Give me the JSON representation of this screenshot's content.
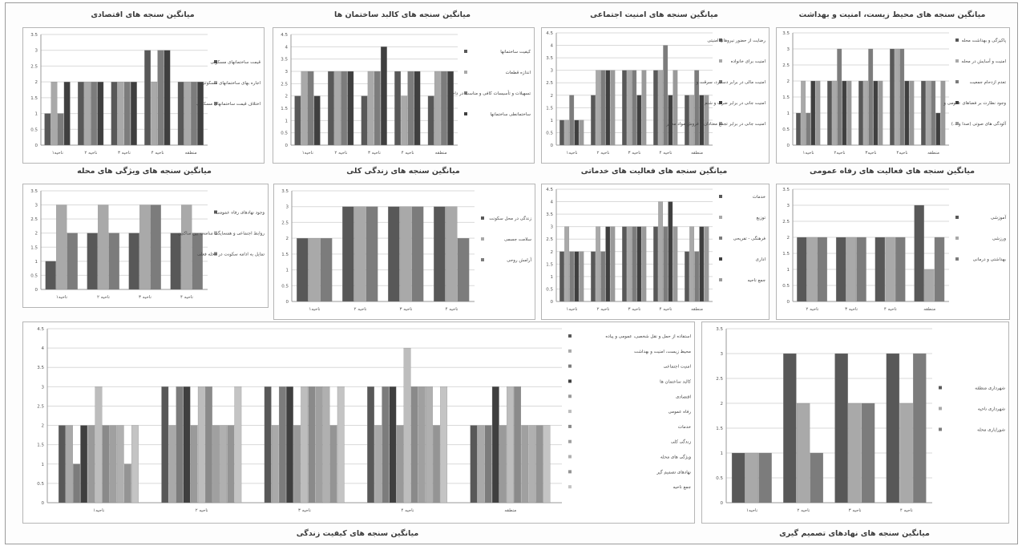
{
  "chart_data": [
    {
      "type": "bar",
      "title": "میانگین سنجه های اقتصادی",
      "categories": [
        "ناحیه۱",
        "ناحیه ۲",
        "ناحیه ۳",
        "ناحیه ۴",
        "منطقه"
      ],
      "ylim": [
        0,
        3.5
      ],
      "grid": true,
      "legend": "right",
      "series": [
        {
          "name": "قیمت ساختمانهای مسکونی",
          "values": [
            1,
            2,
            2,
            3,
            2
          ]
        },
        {
          "name": "اجاره بهای ساختمانهای مسکونی",
          "values": [
            2,
            2,
            2,
            2,
            2
          ]
        },
        {
          "name": "اختلاف قیمت ساختمانهای مسکونی",
          "values": [
            1,
            2,
            2,
            3,
            2
          ]
        },
        {
          "name": "",
          "values": [
            2,
            2,
            2,
            3,
            2
          ]
        }
      ]
    },
    {
      "type": "bar",
      "title": "میانگین سنجه های کالبد ساختمان ها",
      "categories": [
        "ناحیه۱",
        "ناحیه ۲",
        "ناحیه ۳",
        "ناحیه ۴",
        "منطقه"
      ],
      "ylim": [
        0,
        4.5
      ],
      "grid": true,
      "legend": "right",
      "series": [
        {
          "name": "کیفیت ساختمانها",
          "values": [
            2,
            3,
            2,
            3,
            2
          ]
        },
        {
          "name": "اندازه قطعات",
          "values": [
            3,
            3,
            3,
            2,
            3
          ]
        },
        {
          "name": "تسهیلات و تأسیسات کافی و مناسب در داخل",
          "values": [
            3,
            3,
            3,
            3,
            3
          ]
        },
        {
          "name": "ساختمانطی ساختمانها",
          "values": [
            2,
            3,
            4,
            3,
            3
          ]
        }
      ]
    },
    {
      "type": "bar",
      "title": "میانگین سنجه های امنیت اجتماعی",
      "categories": [
        "ناحیه۱",
        "ناحیه ۲",
        "ناحیه ۳",
        "ناحیه ۴",
        "منطقه"
      ],
      "ylim": [
        0,
        4.5
      ],
      "grid": true,
      "legend": "right",
      "series": [
        {
          "name": "رضایت از حضور نیروهای امنیتی",
          "values": [
            1,
            2,
            3,
            3,
            2
          ]
        },
        {
          "name": "امنیت برای خانواده",
          "values": [
            1,
            3,
            3,
            3,
            2
          ]
        },
        {
          "name": "امنیت مالی در برابر دستبرد، سرقت و",
          "values": [
            2,
            3,
            3,
            4,
            3
          ]
        },
        {
          "name": "امنیت جانی در برابر ضرب و شتم و",
          "values": [
            1,
            3,
            2,
            2,
            2
          ]
        },
        {
          "name": "امنیت جانی در برابر تجمع معتادان و فروش مواد مخدر",
          "values": [
            1,
            3,
            3,
            3,
            2
          ]
        }
      ]
    },
    {
      "type": "bar",
      "title": "میانگین سنجه های محیط زیست، امنیت و بهداشت",
      "categories": [
        "ناحیه۱",
        "ناحیه۲",
        "ناحیه۳",
        "ناحیه۴",
        "منطقه"
      ],
      "ylim": [
        0,
        3.5
      ],
      "grid": true,
      "legend": "right",
      "series": [
        {
          "name": "پاکیزگی و بهداشت محله",
          "values": [
            1,
            2,
            2,
            3,
            2
          ]
        },
        {
          "name": "امنیت و آسایش در محله",
          "values": [
            2,
            2,
            2,
            3,
            2
          ]
        },
        {
          "name": "تعدم ازدحام جمعیت",
          "values": [
            1,
            3,
            3,
            3,
            2
          ]
        },
        {
          "name": "وجود نظارت بر فضاهای عمومی و",
          "values": [
            2,
            2,
            2,
            2,
            1
          ]
        },
        {
          "name": "آلودگی های صوتی (صدا و ...)",
          "values": [
            2,
            2,
            2,
            2,
            2
          ]
        }
      ]
    },
    {
      "type": "bar",
      "title": "میانگین سنجه های ویژگی های محله",
      "categories": [
        "ناحیه۱",
        "ناحیه ۲",
        "ناحیه ۳",
        "ناحیه ۴"
      ],
      "ylim": [
        0,
        3.5
      ],
      "grid": true,
      "legend": "right",
      "series": [
        {
          "name": "وجود نهادهای رفاه عمومی",
          "values": [
            1,
            2,
            2,
            2
          ]
        },
        {
          "name": "روابط اجتماعی و همسایگی مناسب بین ساکنین",
          "values": [
            3,
            3,
            3,
            3
          ]
        },
        {
          "name": "تمایل به ادامه سکونت در محله فعلی",
          "values": [
            2,
            2,
            3,
            2
          ]
        }
      ]
    },
    {
      "type": "bar",
      "title": "میانگین سنجه های زندگی کلی",
      "categories": [
        "ناحیه۱",
        "ناحیه ۲",
        "ناحیه ۳",
        "ناحیه ۴"
      ],
      "ylim": [
        0,
        3.5
      ],
      "grid": true,
      "legend": "right",
      "series": [
        {
          "name": "زندگی در محل سکونت",
          "values": [
            2,
            3,
            3,
            3
          ]
        },
        {
          "name": "سلامت جسمی",
          "values": [
            2,
            3,
            3,
            3
          ]
        },
        {
          "name": "آرامش روحی",
          "values": [
            2,
            3,
            3,
            2
          ]
        }
      ]
    },
    {
      "type": "bar",
      "title": "میانگین سنجه های فعالیت های خدماتی",
      "categories": [
        "ناحیه۱",
        "ناحیه ۲",
        "ناحیه ۳",
        "ناحیه ۴",
        "منطقه"
      ],
      "ylim": [
        0,
        4.5
      ],
      "grid": true,
      "legend": "right",
      "series": [
        {
          "name": "خدمات",
          "values": [
            2,
            2,
            3,
            3,
            2
          ]
        },
        {
          "name": "توزیع",
          "values": [
            3,
            3,
            3,
            4,
            3
          ]
        },
        {
          "name": "فرهنگی - تفریحی",
          "values": [
            2,
            2,
            3,
            3,
            2
          ]
        },
        {
          "name": "اداری",
          "values": [
            2,
            3,
            3,
            4,
            3
          ]
        },
        {
          "name": "جمع ناحیه",
          "values": [
            2,
            3,
            3,
            3,
            3
          ]
        }
      ]
    },
    {
      "type": "bar",
      "title": "میانگین سنجه های فعالیت های رفاه عمومی",
      "categories": [
        "ناحیه ۲",
        "ناحیه ۳",
        "ناحیه ۴",
        "منطقه"
      ],
      "ylim": [
        0,
        3.5
      ],
      "grid": true,
      "legend": "right",
      "series": [
        {
          "name": "آموزشی",
          "values": [
            2,
            2,
            2,
            3
          ]
        },
        {
          "name": "ورزشی",
          "values": [
            2,
            2,
            2,
            1
          ]
        },
        {
          "name": "بهداشتی و درمانی",
          "values": [
            2,
            2,
            2,
            2
          ]
        }
      ]
    },
    {
      "type": "bar",
      "title": "میانگین سنجه های کیفیت زندگی",
      "categories": [
        "ناحیه۱",
        "ناحیه ۲",
        "ناحیه ۳",
        "ناحیه ۴",
        "منطقه"
      ],
      "ylim": [
        0,
        4.5
      ],
      "grid": true,
      "legend": "right",
      "series": [
        {
          "name": "استفاده از حمل و نقل شخصی، عمومی و پیاده",
          "values": [
            2,
            3,
            3,
            3,
            2
          ]
        },
        {
          "name": "محیط زیست، امنیت و بهداشت",
          "values": [
            2,
            2,
            2,
            2,
            2
          ]
        },
        {
          "name": "امنیت اجتماعی",
          "values": [
            1,
            3,
            3,
            3,
            2
          ]
        },
        {
          "name": "کالبد ساختمان ها",
          "values": [
            2,
            3,
            3,
            3,
            3
          ]
        },
        {
          "name": "اقتصادی",
          "values": [
            2,
            2,
            2,
            2,
            2
          ]
        },
        {
          "name": "رفاه عمومی",
          "values": [
            3,
            3,
            3,
            4,
            3
          ]
        },
        {
          "name": "خدمات",
          "values": [
            2,
            3,
            3,
            3,
            3
          ]
        },
        {
          "name": "زندگی کلی",
          "values": [
            2,
            2,
            3,
            3,
            2
          ]
        },
        {
          "name": "ویژگی های محله",
          "values": [
            2,
            2,
            3,
            3,
            2
          ]
        },
        {
          "name": "نهادهای تصمیم گیر",
          "values": [
            1,
            2,
            2,
            2,
            2
          ]
        },
        {
          "name": "جمع ناحیه",
          "values": [
            2,
            3,
            3,
            3,
            2
          ]
        }
      ]
    },
    {
      "type": "bar",
      "title": "میانگین سنجه های نهادهای تصمیم گیری",
      "categories": [
        "ناحیه۱",
        "ناحیه ۲",
        "ناحیه ۳",
        "ناحیه ۴"
      ],
      "ylim": [
        0,
        3.5
      ],
      "grid": true,
      "legend": "right",
      "series": [
        {
          "name": "شهرداری منطقه",
          "values": [
            1,
            3,
            3,
            3
          ]
        },
        {
          "name": "شهرداری ناحیه",
          "values": [
            1,
            2,
            2,
            2
          ]
        },
        {
          "name": "شورایاری محله",
          "values": [
            1,
            1,
            2,
            3
          ]
        }
      ]
    }
  ]
}
